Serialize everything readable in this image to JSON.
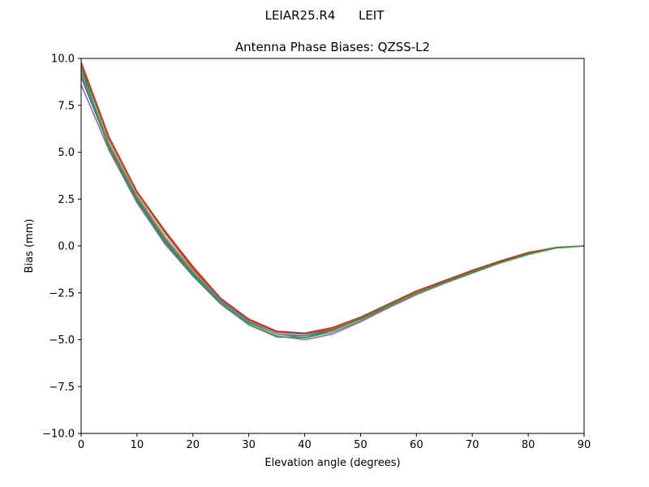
{
  "chart_data": {
    "type": "line",
    "suptitle": "LEIAR25.R4      LEIT",
    "title": "Antenna Phase Biases: QZSS-L2",
    "xlabel": "Elevation angle (degrees)",
    "ylabel": "Bias (mm)",
    "xlim": [
      0,
      90
    ],
    "ylim": [
      -10,
      10
    ],
    "xticks": [
      0,
      10,
      20,
      30,
      40,
      50,
      60,
      70,
      80,
      90
    ],
    "xtick_labels": [
      "0",
      "10",
      "20",
      "30",
      "40",
      "50",
      "60",
      "70",
      "80",
      "90"
    ],
    "yticks": [
      10,
      7.5,
      5,
      2.5,
      0,
      -2.5,
      -5,
      -7.5,
      -10
    ],
    "ytick_labels": [
      "10.0",
      "7.5",
      "5.0",
      "2.5",
      "0.0",
      "−2.5",
      "−5.0",
      "−7.5",
      "−10.0"
    ],
    "grid": false,
    "legend": "none",
    "x": [
      0,
      5,
      10,
      15,
      20,
      25,
      30,
      35,
      40,
      45,
      50,
      55,
      60,
      65,
      70,
      75,
      80,
      85,
      90
    ],
    "series": [
      {
        "color": "#1f77b4",
        "values": [
          9.0,
          5.3,
          2.5,
          0.3,
          -1.5,
          -3.0,
          -4.1,
          -4.7,
          -4.8,
          -4.5,
          -3.9,
          -3.2,
          -2.5,
          -1.95,
          -1.4,
          -0.9,
          -0.45,
          -0.1,
          0.0
        ]
      },
      {
        "color": "#ff7f0e",
        "values": [
          9.3,
          5.5,
          2.7,
          0.5,
          -1.3,
          -2.9,
          -4.0,
          -4.6,
          -4.7,
          -4.4,
          -3.85,
          -3.15,
          -2.45,
          -1.9,
          -1.35,
          -0.85,
          -0.4,
          -0.1,
          0.0
        ]
      },
      {
        "color": "#d62728",
        "values": [
          9.8,
          5.8,
          2.9,
          0.8,
          -1.1,
          -2.8,
          -3.9,
          -4.55,
          -4.65,
          -4.35,
          -3.8,
          -3.1,
          -2.4,
          -1.85,
          -1.3,
          -0.8,
          -0.35,
          -0.08,
          0.0
        ]
      },
      {
        "color": "#9467bd",
        "values": [
          8.6,
          5.1,
          2.3,
          0.1,
          -1.6,
          -3.1,
          -4.2,
          -4.8,
          -5.0,
          -4.7,
          -4.05,
          -3.3,
          -2.6,
          -2.0,
          -1.45,
          -0.9,
          -0.45,
          -0.1,
          0.0
        ]
      },
      {
        "color": "#8c564b",
        "values": [
          9.6,
          5.7,
          2.85,
          0.7,
          -1.2,
          -2.85,
          -3.95,
          -4.6,
          -4.7,
          -4.45,
          -3.9,
          -3.2,
          -2.5,
          -1.9,
          -1.35,
          -0.85,
          -0.4,
          -0.08,
          0.0
        ]
      },
      {
        "color": "#7f7f7f",
        "values": [
          9.2,
          5.4,
          2.6,
          0.4,
          -1.4,
          -2.95,
          -4.05,
          -4.7,
          -4.9,
          -4.6,
          -4.0,
          -3.25,
          -2.55,
          -1.95,
          -1.4,
          -0.9,
          -0.45,
          -0.1,
          0.0
        ]
      },
      {
        "color": "#2ca02c",
        "values": [
          9.5,
          5.2,
          2.4,
          0.2,
          -1.6,
          -3.1,
          -4.2,
          -4.85,
          -4.9,
          -4.5,
          -3.85,
          -3.15,
          -2.5,
          -1.95,
          -1.4,
          -0.9,
          -0.45,
          -0.1,
          0.0
        ]
      }
    ]
  }
}
